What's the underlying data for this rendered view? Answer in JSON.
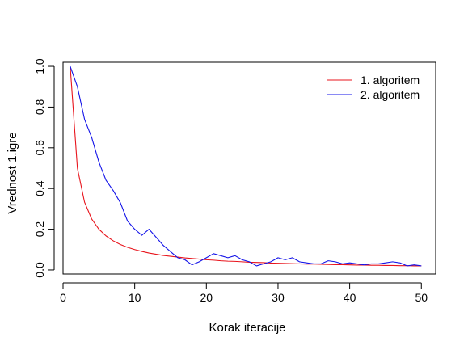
{
  "chart_data": {
    "type": "line",
    "title": "",
    "xlabel": "Korak iteracije",
    "ylabel": "Vrednost 1.igre",
    "xlim": [
      0,
      52
    ],
    "ylim": [
      -0.02,
      1.02
    ],
    "x_ticks": [
      0,
      10,
      20,
      30,
      40,
      50
    ],
    "x_tick_labels": [
      "0",
      "10",
      "20",
      "30",
      "40",
      "50"
    ],
    "y_ticks": [
      0.0,
      0.2,
      0.4,
      0.6,
      0.8,
      1.0
    ],
    "y_tick_labels": [
      "0.0",
      "0.2",
      "0.4",
      "0.6",
      "0.8",
      "1.0"
    ],
    "grid": false,
    "legend_position": "top-right",
    "x": [
      1,
      2,
      3,
      4,
      5,
      6,
      7,
      8,
      9,
      10,
      11,
      12,
      13,
      14,
      15,
      16,
      17,
      18,
      19,
      20,
      21,
      22,
      23,
      24,
      25,
      26,
      27,
      28,
      29,
      30,
      31,
      32,
      33,
      34,
      35,
      36,
      37,
      38,
      39,
      40,
      41,
      42,
      43,
      44,
      45,
      46,
      47,
      48,
      49,
      50
    ],
    "series": [
      {
        "name": "1. algoritem",
        "color": "#e8141c",
        "values": [
          1.0,
          0.5,
          0.333,
          0.25,
          0.2,
          0.167,
          0.143,
          0.125,
          0.111,
          0.1,
          0.091,
          0.083,
          0.077,
          0.071,
          0.067,
          0.063,
          0.059,
          0.056,
          0.053,
          0.05,
          0.048,
          0.045,
          0.043,
          0.042,
          0.04,
          0.038,
          0.037,
          0.036,
          0.034,
          0.033,
          0.032,
          0.031,
          0.03,
          0.029,
          0.029,
          0.028,
          0.027,
          0.026,
          0.026,
          0.025,
          0.024,
          0.024,
          0.023,
          0.023,
          0.022,
          0.022,
          0.021,
          0.021,
          0.02,
          0.02
        ]
      },
      {
        "name": "2. algoritem",
        "color": "#1414e8",
        "values": [
          1.0,
          0.9,
          0.74,
          0.65,
          0.53,
          0.44,
          0.39,
          0.33,
          0.24,
          0.2,
          0.17,
          0.2,
          0.16,
          0.12,
          0.09,
          0.06,
          0.05,
          0.025,
          0.04,
          0.06,
          0.08,
          0.07,
          0.06,
          0.07,
          0.05,
          0.04,
          0.02,
          0.03,
          0.04,
          0.06,
          0.05,
          0.06,
          0.04,
          0.035,
          0.03,
          0.03,
          0.045,
          0.04,
          0.03,
          0.035,
          0.03,
          0.025,
          0.03,
          0.03,
          0.035,
          0.04,
          0.035,
          0.02,
          0.025,
          0.02
        ]
      }
    ]
  }
}
